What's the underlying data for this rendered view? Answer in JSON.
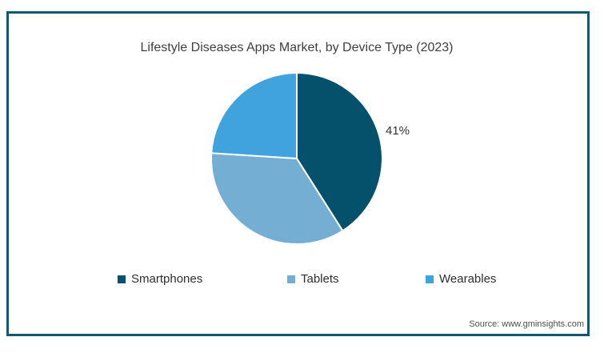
{
  "frame": {
    "border_color": "#15586e",
    "background": "#ffffff"
  },
  "chart_data": {
    "type": "pie",
    "title": "Lifestyle Diseases Apps Market, by Device Type (2023)",
    "slices": [
      {
        "label": "Smartphones",
        "value": 41,
        "color": "#05506a",
        "value_label": "41%"
      },
      {
        "label": "Tablets",
        "value": 35,
        "color": "#74afd3",
        "value_label": ""
      },
      {
        "label": "Wearables",
        "value": 24,
        "color": "#41a3dd",
        "value_label": ""
      }
    ],
    "start_angle_deg": 0,
    "direction": "clockwise",
    "slice_stroke_color": "#ffffff",
    "legend_position": "bottom",
    "shown_value_label": "41%"
  },
  "legend": {
    "items": [
      {
        "label": "Smartphones",
        "color": "#05506a"
      },
      {
        "label": "Tablets",
        "color": "#74afd3"
      },
      {
        "label": "Wearables",
        "color": "#41a3dd"
      }
    ]
  },
  "source": {
    "text": "Source: www.gminsights.com"
  }
}
